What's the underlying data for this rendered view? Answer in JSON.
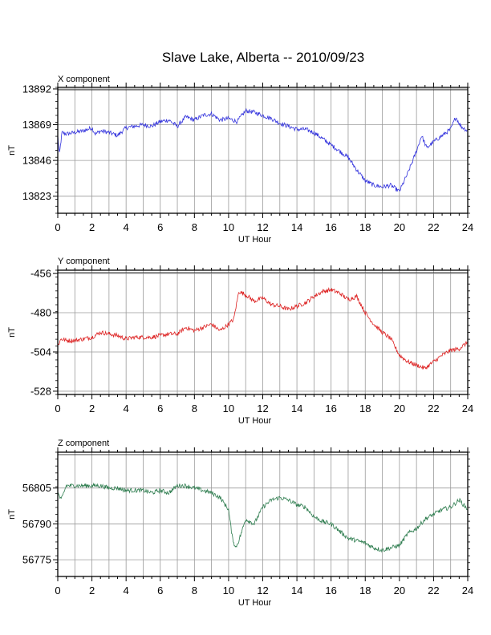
{
  "figure": {
    "title": "Slave Lake, Alberta -- 2010/09/23"
  },
  "chart_data": [
    {
      "type": "line",
      "panel_title": "X component",
      "xlabel": "UT Hour",
      "ylabel": "nT",
      "xlim": [
        0,
        24
      ],
      "ylim": [
        13812,
        13893
      ],
      "xticks": [
        0,
        2,
        4,
        6,
        8,
        10,
        12,
        14,
        16,
        18,
        20,
        22,
        24
      ],
      "yticks": [
        13823,
        13846,
        13869,
        13892
      ],
      "grid": true,
      "color": "#3333dd",
      "x": [
        0,
        0.1,
        0.25,
        0.5,
        1,
        1.5,
        2,
        2.2,
        2.5,
        3,
        3.5,
        4,
        4.5,
        5,
        5.5,
        6,
        6.5,
        7,
        7.5,
        8,
        8.5,
        9,
        9.5,
        10,
        10.5,
        11,
        11.5,
        12,
        12.5,
        13,
        13.5,
        14,
        14.5,
        15,
        15.5,
        16,
        16.5,
        17,
        17.5,
        18,
        18.5,
        19,
        19.5,
        20,
        20.5,
        21,
        21.3,
        21.6,
        22,
        22.5,
        23,
        23.3,
        23.6,
        24
      ],
      "y": [
        13862,
        13850,
        13864,
        13863,
        13864,
        13865,
        13867,
        13863,
        13865,
        13864,
        13862,
        13867,
        13868,
        13869,
        13868,
        13871,
        13872,
        13868,
        13874,
        13872,
        13875,
        13876,
        13872,
        13873,
        13871,
        13878,
        13877,
        13875,
        13873,
        13870,
        13868,
        13866,
        13866,
        13864,
        13860,
        13856,
        13852,
        13848,
        13840,
        13833,
        13830,
        13829,
        13830,
        13826,
        13838,
        13852,
        13862,
        13854,
        13858,
        13862,
        13866,
        13874,
        13868,
        13865
      ]
    },
    {
      "type": "line",
      "panel_title": "Y component",
      "xlabel": "UT Hour",
      "ylabel": "nT",
      "xlim": [
        0,
        24
      ],
      "ylim": [
        -530,
        -454
      ],
      "xticks": [
        0,
        2,
        4,
        6,
        8,
        10,
        12,
        14,
        16,
        18,
        20,
        22,
        24
      ],
      "yticks": [
        -456,
        -480,
        -504,
        -528
      ],
      "grid": true,
      "color": "#dd2222",
      "x": [
        0,
        0.2,
        0.5,
        1,
        1.5,
        2,
        2.5,
        3,
        3.5,
        4,
        4.5,
        5,
        5.5,
        6,
        6.5,
        7,
        7.5,
        8,
        8.5,
        9,
        9.5,
        10,
        10.3,
        10.6,
        11,
        11.5,
        12,
        12.5,
        13,
        13.5,
        14,
        14.5,
        15,
        15.5,
        16,
        16.5,
        17,
        17.5,
        18,
        18.5,
        19,
        19.5,
        20,
        20.5,
        21,
        21.5,
        22,
        22.5,
        23,
        23.5,
        24
      ],
      "y": [
        -500,
        -496,
        -497,
        -497,
        -496,
        -495,
        -492,
        -493,
        -494,
        -496,
        -495,
        -495,
        -495,
        -494,
        -493,
        -493,
        -489,
        -491,
        -489,
        -487,
        -491,
        -487,
        -484,
        -467,
        -469,
        -473,
        -471,
        -475,
        -476,
        -478,
        -476,
        -474,
        -470,
        -467,
        -466,
        -468,
        -472,
        -470,
        -480,
        -487,
        -492,
        -496,
        -506,
        -510,
        -512,
        -514,
        -510,
        -506,
        -503,
        -502,
        -498
      ]
    },
    {
      "type": "line",
      "panel_title": "Z component",
      "xlabel": "UT Hour",
      "ylabel": "nT",
      "xlim": [
        0,
        24
      ],
      "ylim": [
        56768,
        56820
      ],
      "xticks": [
        0,
        2,
        4,
        6,
        8,
        10,
        12,
        14,
        16,
        18,
        20,
        22,
        24
      ],
      "yticks": [
        56775,
        56790,
        56805
      ],
      "grid": true,
      "color": "#2e7d4f",
      "x": [
        0,
        0.2,
        0.5,
        1,
        1.5,
        2,
        2.5,
        3,
        3.5,
        4,
        4.5,
        5,
        5.5,
        6,
        6.5,
        7,
        7.5,
        8,
        8.5,
        9,
        9.5,
        10,
        10.2,
        10.4,
        10.6,
        11,
        11.5,
        12,
        12.5,
        13,
        13.5,
        14,
        14.5,
        15,
        15.5,
        16,
        16.5,
        17,
        17.5,
        18,
        18.5,
        19,
        19.5,
        20,
        20.5,
        21,
        21.5,
        22,
        22.5,
        23,
        23.5,
        24
      ],
      "y": [
        56803,
        56800,
        56806,
        56806,
        56806,
        56806,
        56806,
        56805,
        56805,
        56804,
        56804,
        56804,
        56803,
        56804,
        56803,
        56806,
        56806,
        56805,
        56804,
        56803,
        56801,
        56796,
        56785,
        56780,
        56783,
        56792,
        56790,
        56797,
        56800,
        56801,
        56800,
        56798,
        56797,
        56793,
        56791,
        56790,
        56787,
        56784,
        56783,
        56782,
        56780,
        56779,
        56780,
        56781,
        56786,
        56788,
        56792,
        56794,
        56796,
        56797,
        56800,
        56796
      ]
    }
  ]
}
